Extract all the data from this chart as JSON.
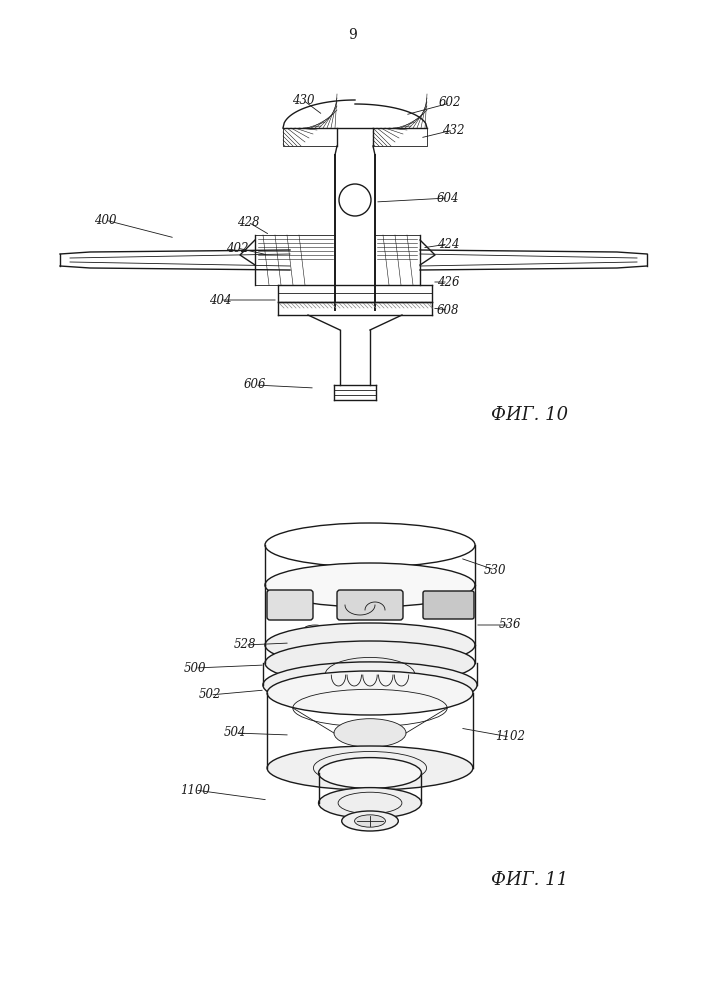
{
  "page_number": "9",
  "fig10_label": "ФИГ. 10",
  "fig11_label": "ФИГ. 11",
  "bg_color": "#ffffff",
  "line_color": "#1a1a1a",
  "font_size_labels": 8.5,
  "font_size_fig": 13,
  "font_size_page": 10
}
